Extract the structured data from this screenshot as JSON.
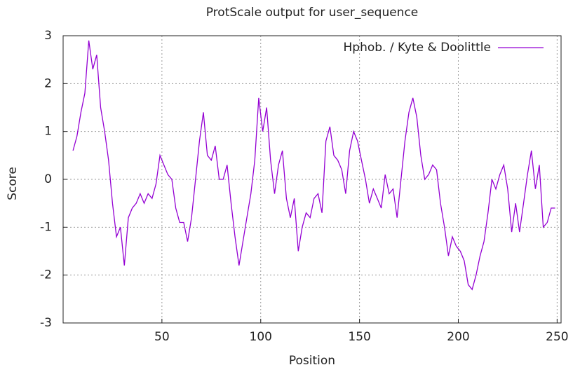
{
  "chart_data": {
    "type": "line",
    "title": "ProtScale output for user_sequence",
    "xlabel": "Position",
    "ylabel": "Score",
    "x": [
      5,
      7,
      9,
      11,
      13,
      15,
      17,
      19,
      21,
      23,
      25,
      27,
      29,
      31,
      33,
      35,
      37,
      39,
      41,
      43,
      45,
      47,
      49,
      51,
      53,
      55,
      57,
      59,
      61,
      63,
      65,
      67,
      69,
      71,
      73,
      75,
      77,
      79,
      81,
      83,
      85,
      87,
      89,
      91,
      93,
      95,
      97,
      99,
      101,
      103,
      105,
      107,
      109,
      111,
      113,
      115,
      117,
      119,
      121,
      123,
      125,
      127,
      129,
      131,
      133,
      135,
      137,
      139,
      141,
      143,
      145,
      147,
      149,
      151,
      153,
      155,
      157,
      159,
      161,
      163,
      165,
      167,
      169,
      171,
      173,
      175,
      177,
      179,
      181,
      183,
      185,
      187,
      189,
      191,
      193,
      195,
      197,
      199,
      201,
      203,
      205,
      207,
      209,
      211,
      213,
      215,
      217,
      219,
      221,
      223,
      225,
      227,
      229,
      231,
      233,
      235,
      237,
      239,
      241,
      243,
      245,
      247,
      249
    ],
    "series": [
      {
        "name": "Hphob. / Kyte & Doolittle",
        "color": "#9400d3",
        "values": [
          0.6,
          0.9,
          1.4,
          1.8,
          2.9,
          2.3,
          2.6,
          1.5,
          1.0,
          0.4,
          -0.5,
          -1.2,
          -1.0,
          -1.8,
          -0.8,
          -0.6,
          -0.5,
          -0.3,
          -0.5,
          -0.3,
          -0.4,
          -0.1,
          0.5,
          0.3,
          0.1,
          0.0,
          -0.6,
          -0.9,
          -0.9,
          -1.3,
          -0.8,
          0.0,
          0.8,
          1.4,
          0.5,
          0.4,
          0.7,
          0.0,
          0.0,
          0.3,
          -0.5,
          -1.2,
          -1.8,
          -1.3,
          -0.8,
          -0.3,
          0.4,
          1.7,
          1.0,
          1.5,
          0.4,
          -0.3,
          0.3,
          0.6,
          -0.4,
          -0.8,
          -0.4,
          -1.5,
          -1.0,
          -0.7,
          -0.8,
          -0.4,
          -0.3,
          -0.7,
          0.8,
          1.1,
          0.5,
          0.4,
          0.2,
          -0.3,
          0.6,
          1.0,
          0.8,
          0.4,
          0.0,
          -0.5,
          -0.2,
          -0.4,
          -0.6,
          0.1,
          -0.3,
          -0.2,
          -0.8,
          0.0,
          0.8,
          1.4,
          1.7,
          1.3,
          0.5,
          0.0,
          0.1,
          0.3,
          0.2,
          -0.5,
          -1.0,
          -1.6,
          -1.2,
          -1.4,
          -1.5,
          -1.7,
          -2.2,
          -2.3,
          -2.0,
          -1.6,
          -1.3,
          -0.7,
          0.0,
          -0.2,
          0.1,
          0.3,
          -0.2,
          -1.1,
          -0.5,
          -1.1,
          -0.5,
          0.1,
          0.6,
          -0.2,
          0.3,
          -1.0,
          -0.9,
          -0.6,
          -0.6
        ]
      }
    ],
    "xlim": [
      0,
      252
    ],
    "xticks": [
      50,
      100,
      150,
      200,
      250
    ],
    "ylim": [
      -3,
      3
    ],
    "yticks": [
      -3,
      -2,
      -1,
      0,
      1,
      2,
      3
    ],
    "grid": true,
    "legend": "top right"
  }
}
